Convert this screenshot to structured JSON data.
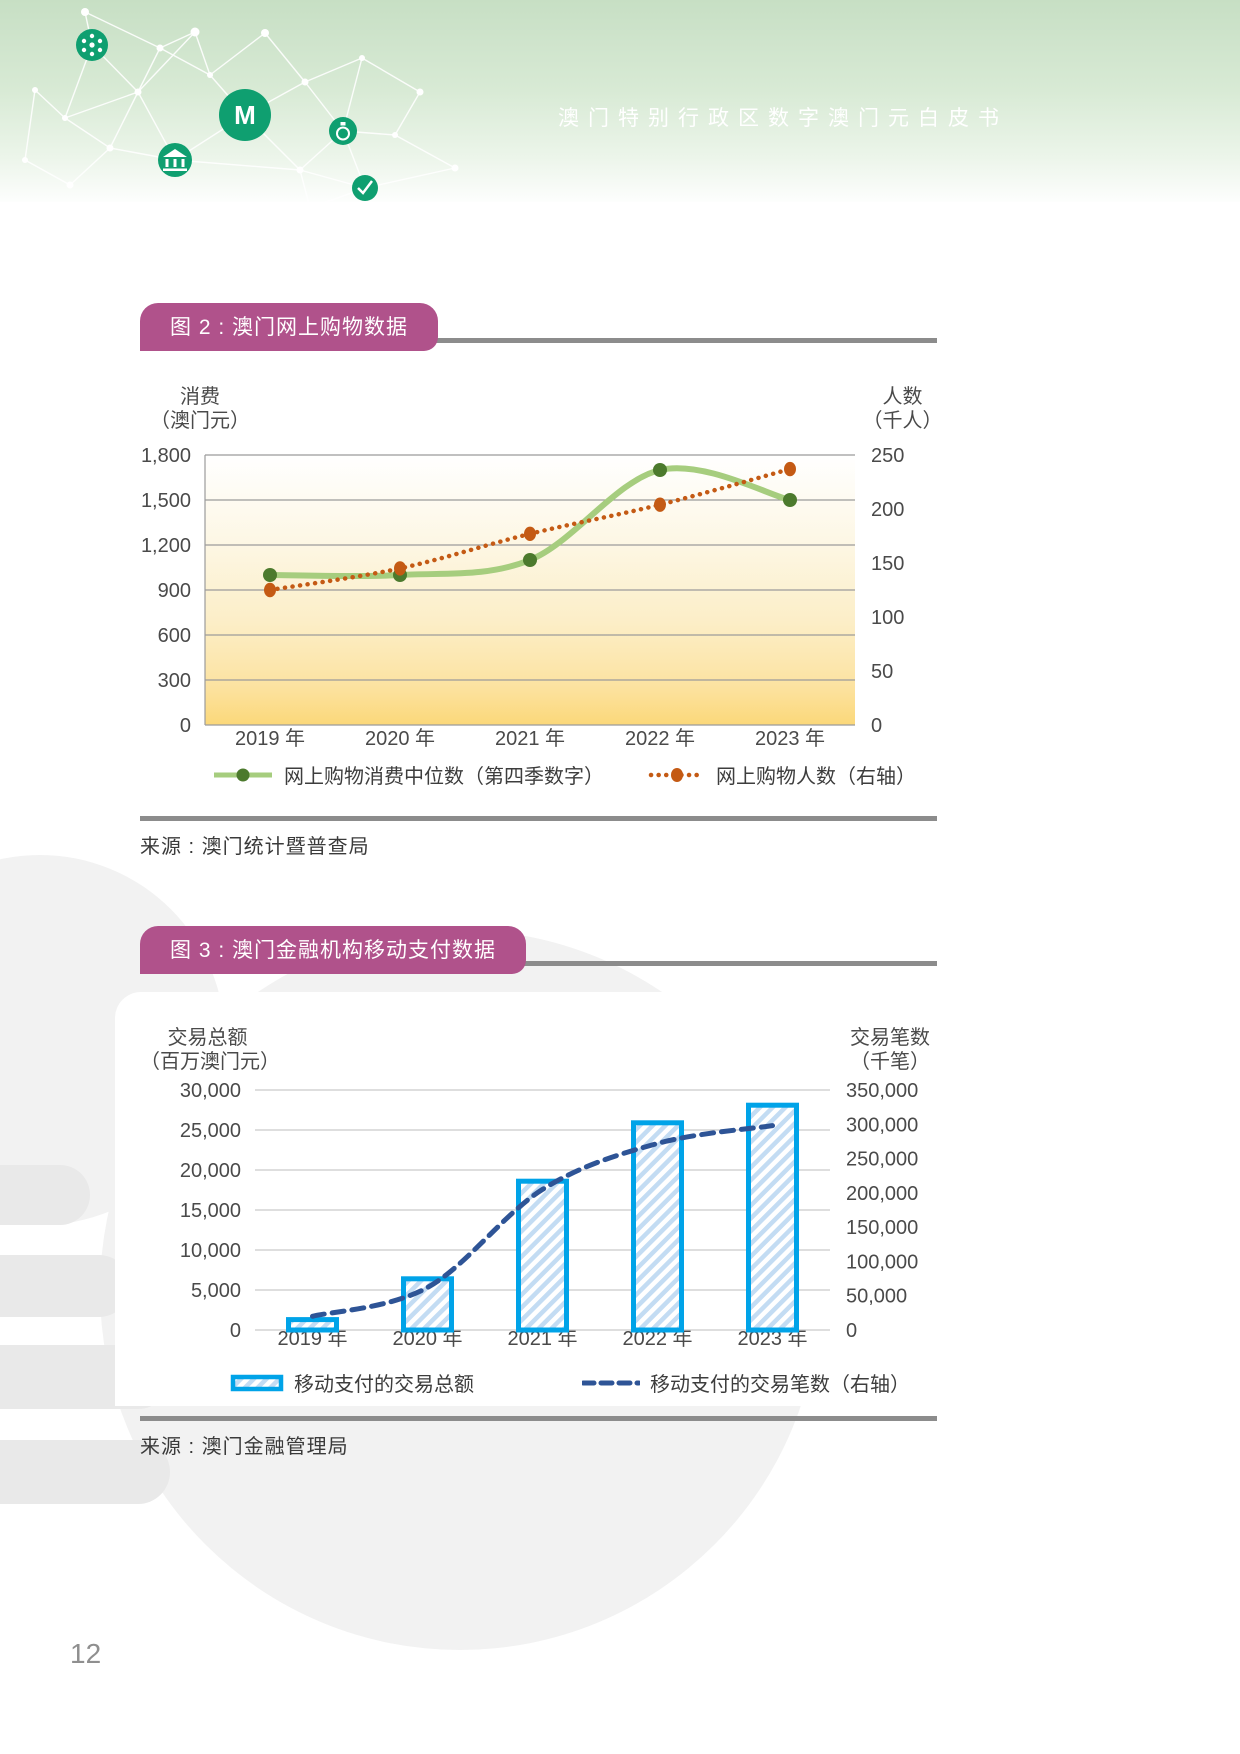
{
  "header": {
    "title": "澳门特别行政区数字澳门元白皮书"
  },
  "figure2": {
    "badge": "图 2 : 澳门网上购物数据",
    "source": "来源 : 澳门统计暨普查局",
    "left_axis_caption": [
      "消费",
      "（澳门元）"
    ],
    "right_axis_caption": [
      "人数",
      "（千人）"
    ]
  },
  "figure3": {
    "badge": "图 3 : 澳门金融机构移动支付数据",
    "source": "来源 : 澳门金融管理局",
    "left_axis_caption": [
      "交易总额",
      "（百万澳门元）"
    ],
    "right_axis_caption": [
      "交易笔数",
      "（千笔）"
    ]
  },
  "page_number": "12",
  "colors": {
    "header_green": "#c7dfc4",
    "icon_green": "#0f9f70",
    "badge_magenta": "#b0528b",
    "rule_gray": "#8c8c8c",
    "fig2_consumption_line": "#a6cd7e",
    "fig2_consumption_marker": "#4c7a2d",
    "fig2_people_line": "#c45a14",
    "fig2_plot_gradient_bottom": "#fbd87a",
    "fig3_bar_border": "#00a3e8",
    "fig3_bar_hatch": "#c3dcf3",
    "fig3_count_line": "#2e5496",
    "watermark_gray": "#f2f2f2"
  },
  "chart_data": [
    {
      "id": "figure2",
      "type": "line",
      "title": "图 2 : 澳门网上购物数据",
      "categories": [
        "2019 年",
        "2020 年",
        "2021 年",
        "2022 年",
        "2023 年"
      ],
      "series": [
        {
          "name": "网上购物消费中位数（第四季数字）",
          "axis": "left",
          "style": "solid",
          "color": "#a6cd7e",
          "marker": "circle",
          "marker_color": "#4c7a2d",
          "values": [
            1000,
            1000,
            1100,
            1700,
            1500
          ]
        },
        {
          "name": "网上购物人数（右轴）",
          "axis": "right",
          "style": "dotted",
          "color": "#c45a14",
          "marker": "ellipse",
          "values": [
            125,
            145,
            177,
            204,
            237
          ]
        }
      ],
      "left_axis": {
        "label": "消费（澳门元）",
        "min": 0,
        "max": 1800,
        "step": 300,
        "ticks": [
          "1,800",
          "1,500",
          "1,200",
          "900",
          "600",
          "300",
          "0"
        ]
      },
      "right_axis": {
        "label": "人数（千人）",
        "min": 0,
        "max": 250,
        "step": 50,
        "ticks": [
          "250",
          "200",
          "150",
          "100",
          "50",
          "0"
        ]
      },
      "grid": true,
      "legend_position": "bottom"
    },
    {
      "id": "figure3",
      "type": "bar",
      "title": "图 3 : 澳门金融机构移动支付数据",
      "categories": [
        "2019 年",
        "2020 年",
        "2021 年",
        "2022 年",
        "2023 年"
      ],
      "series": [
        {
          "name": "移动支付的交易总额",
          "type": "bar",
          "axis": "left",
          "color": "#00a3e8",
          "hatch": "#c3dcf3",
          "values": [
            1300,
            6400,
            18600,
            25900,
            28100
          ]
        },
        {
          "name": "移动支付的交易笔数（右轴）",
          "type": "line",
          "axis": "right",
          "style": "dashed",
          "color": "#2e5496",
          "values": [
            20000,
            62000,
            205000,
            272000,
            298000
          ]
        }
      ],
      "left_axis": {
        "label": "交易总额（百万澳门元）",
        "min": 0,
        "max": 30000,
        "step": 5000,
        "ticks": [
          "30,000",
          "25,000",
          "20,000",
          "15,000",
          "10,000",
          "5,000",
          "0"
        ]
      },
      "right_axis": {
        "label": "交易笔数（千笔）",
        "min": 0,
        "max": 350000,
        "step": 50000,
        "ticks": [
          "350,000",
          "300,000",
          "250,000",
          "200,000",
          "150,000",
          "100,000",
          "50,000",
          "0"
        ]
      },
      "grid": true,
      "legend_position": "bottom"
    }
  ]
}
